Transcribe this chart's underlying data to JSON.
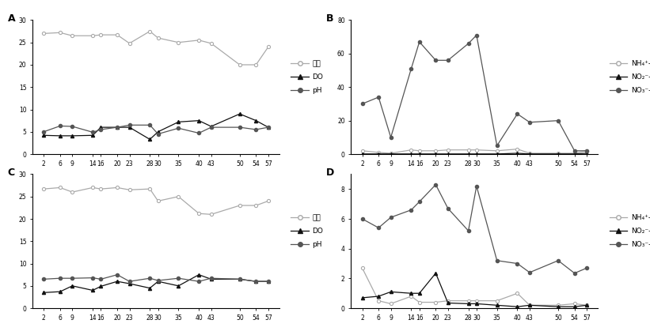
{
  "x_ticks": [
    2,
    6,
    9,
    14,
    16,
    20,
    23,
    28,
    30,
    35,
    40,
    43,
    50,
    54,
    57
  ],
  "A_suon": [
    27,
    27.2,
    26.5,
    26.5,
    26.7,
    26.7,
    24.8,
    27.5,
    26,
    25,
    25.5,
    24.8,
    20,
    20,
    24
  ],
  "A_DO": [
    4.2,
    4.1,
    4.1,
    4.2,
    6.0,
    6.0,
    6.0,
    3.3,
    5.0,
    7.2,
    7.5,
    6.2,
    9.0,
    7.5,
    6.0
  ],
  "A_pH": [
    5.0,
    6.3,
    6.2,
    4.9,
    5.5,
    6.0,
    6.5,
    6.5,
    4.5,
    5.8,
    4.7,
    6.0,
    6.0,
    5.5,
    6.0
  ],
  "B_NH4": [
    2.0,
    1.0,
    0.5,
    2.5,
    2.0,
    2.0,
    2.5,
    2.5,
    2.5,
    2.0,
    3.0,
    0.5,
    0.5,
    0.5,
    2.0
  ],
  "B_NO2": [
    0.1,
    0.1,
    0.1,
    0.1,
    0.1,
    0.1,
    0.1,
    0.1,
    0.1,
    0.1,
    0.5,
    0.1,
    0.1,
    0.1,
    0.5
  ],
  "B_NO3": [
    30,
    34,
    10,
    51,
    67,
    56,
    56,
    66,
    71,
    5,
    24,
    19,
    20,
    2,
    2
  ],
  "C_suon": [
    26.7,
    27,
    26,
    27,
    26.7,
    27,
    26.5,
    26.7,
    24,
    25,
    21.2,
    21,
    23,
    23,
    24
  ],
  "C_DO": [
    3.5,
    3.7,
    5.0,
    4.0,
    4.9,
    6.0,
    5.5,
    4.5,
    6.0,
    5.0,
    7.5,
    6.5,
    6.5,
    6.0,
    6.0
  ],
  "C_pH": [
    6.5,
    6.7,
    6.7,
    6.8,
    6.5,
    7.5,
    6.0,
    6.7,
    6.2,
    6.7,
    6.0,
    6.7,
    6.5,
    6.0,
    6.0
  ],
  "D_NH4": [
    2.7,
    0.5,
    0.3,
    0.8,
    0.4,
    0.4,
    0.5,
    0.5,
    0.5,
    0.5,
    1.0,
    0.2,
    0.2,
    0.3,
    0.2
  ],
  "D_NO2": [
    0.7,
    0.8,
    1.1,
    1.0,
    1.0,
    2.35,
    0.35,
    0.3,
    0.3,
    0.2,
    0.1,
    0.2,
    0.1,
    0.1,
    0.2
  ],
  "D_NO3": [
    6.0,
    5.4,
    6.1,
    6.6,
    7.15,
    8.3,
    6.7,
    5.2,
    8.2,
    3.2,
    3.0,
    2.4,
    3.2,
    2.35,
    2.7
  ],
  "color_suon": "#aaaaaa",
  "color_DO": "#111111",
  "color_pH": "#555555",
  "color_NH4": "#aaaaaa",
  "color_NO2": "#111111",
  "color_NO3": "#555555",
  "A_ylim": [
    0,
    30
  ],
  "B_ylim": [
    0,
    80
  ],
  "C_ylim": [
    0,
    30
  ],
  "D_ylim": [
    0,
    9
  ],
  "A_yticks": [
    0,
    5,
    10,
    15,
    20,
    25,
    30
  ],
  "B_yticks": [
    0,
    20,
    40,
    60,
    80
  ],
  "C_yticks": [
    0,
    5,
    10,
    15,
    20,
    25,
    30
  ],
  "D_yticks": [
    0,
    2,
    4,
    6,
    8
  ]
}
